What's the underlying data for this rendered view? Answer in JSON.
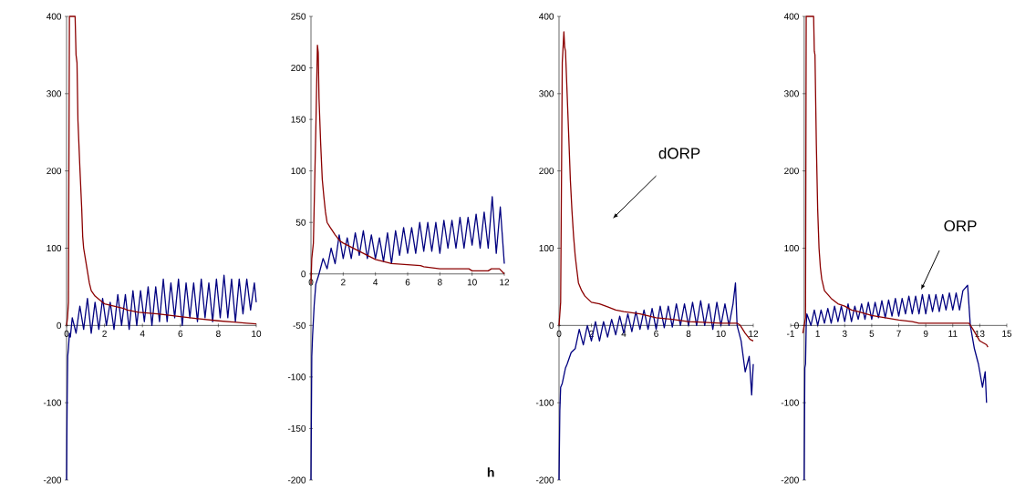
{
  "chart_data": [
    {
      "type": "line",
      "xlim": [
        0,
        10
      ],
      "ylim": [
        -200,
        400
      ],
      "xticks": [
        0,
        2,
        4,
        6,
        8,
        10
      ],
      "yticks": [
        -200,
        -100,
        0,
        100,
        200,
        300,
        400
      ],
      "series": [
        {
          "color": "#000080",
          "x": [
            0,
            0.03,
            0.06,
            0.1,
            0.15,
            0.2,
            0.3,
            0.5,
            0.7,
            0.9,
            1.1,
            1.3,
            1.5,
            1.7,
            1.9,
            2.1,
            2.3,
            2.5,
            2.7,
            2.9,
            3.1,
            3.3,
            3.5,
            3.7,
            3.9,
            4.1,
            4.3,
            4.5,
            4.7,
            4.9,
            5.1,
            5.3,
            5.5,
            5.7,
            5.9,
            6.1,
            6.3,
            6.5,
            6.7,
            6.9,
            7.1,
            7.3,
            7.5,
            7.7,
            7.9,
            8.1,
            8.3,
            8.5,
            8.7,
            8.9,
            9.1,
            9.3,
            9.5,
            9.7,
            9.9,
            10
          ],
          "values": [
            -200,
            -100,
            -40,
            -30,
            -10,
            -15,
            10,
            -10,
            25,
            -5,
            35,
            -10,
            30,
            -5,
            35,
            0,
            30,
            -5,
            40,
            0,
            40,
            -5,
            45,
            0,
            45,
            5,
            50,
            0,
            50,
            5,
            60,
            5,
            55,
            10,
            60,
            0,
            55,
            10,
            55,
            5,
            60,
            10,
            55,
            5,
            60,
            10,
            65,
            10,
            60,
            5,
            60,
            15,
            60,
            20,
            55,
            30
          ]
        },
        {
          "color": "#8b0000",
          "x": [
            0,
            0.05,
            0.1,
            0.15,
            0.45,
            0.5,
            0.55,
            0.6,
            0.7,
            0.8,
            0.85,
            0.9,
            1.0,
            1.1,
            1.2,
            1.3,
            1.5,
            1.8,
            2,
            2.5,
            3,
            3.2,
            3.8,
            4.8,
            5.8,
            6.8,
            8,
            9.5,
            10
          ],
          "values": [
            0,
            10,
            30,
            400,
            400,
            350,
            340,
            265,
            205,
            150,
            115,
            100,
            85,
            70,
            55,
            45,
            38,
            32,
            28,
            25,
            22,
            20,
            17,
            15,
            12,
            9,
            6,
            3,
            2
          ]
        }
      ]
    },
    {
      "type": "line",
      "xlabel": "h",
      "xlim": [
        0,
        12
      ],
      "ylim": [
        -200,
        250
      ],
      "xticks": [
        0,
        2,
        4,
        6,
        8,
        10,
        12
      ],
      "yticks": [
        -200,
        -150,
        -100,
        -50,
        0,
        50,
        100,
        150,
        200,
        250
      ],
      "series": [
        {
          "color": "#000080",
          "x": [
            0,
            0.05,
            0.1,
            0.2,
            0.3,
            0.4,
            0.5,
            0.75,
            1,
            1.25,
            1.5,
            1.75,
            2,
            2.25,
            2.5,
            2.75,
            3,
            3.25,
            3.5,
            3.75,
            4,
            4.25,
            4.5,
            4.75,
            5,
            5.25,
            5.5,
            5.75,
            6,
            6.25,
            6.5,
            6.75,
            7,
            7.25,
            7.5,
            7.75,
            8,
            8.25,
            8.5,
            8.75,
            9,
            9.25,
            9.5,
            9.75,
            10,
            10.25,
            10.5,
            10.75,
            11,
            11.25,
            11.5,
            11.75,
            12
          ],
          "values": [
            -200,
            -80,
            -60,
            -30,
            -10,
            -5,
            0,
            15,
            5,
            25,
            10,
            38,
            15,
            35,
            15,
            40,
            18,
            42,
            15,
            38,
            15,
            35,
            12,
            40,
            10,
            42,
            18,
            45,
            20,
            45,
            20,
            50,
            22,
            50,
            22,
            50,
            20,
            52,
            25,
            52,
            25,
            55,
            25,
            55,
            28,
            58,
            25,
            60,
            25,
            75,
            20,
            65,
            10
          ]
        },
        {
          "color": "#8b0000",
          "x": [
            0,
            0.05,
            0.15,
            0.3,
            0.4,
            0.45,
            0.5,
            0.6,
            0.7,
            0.8,
            0.9,
            1,
            1.2,
            1.5,
            1.8,
            2,
            2.5,
            3,
            3.5,
            4,
            4.5,
            5,
            6,
            6.8,
            7,
            8,
            9.8,
            10,
            11,
            11.2,
            11.7,
            12
          ],
          "values": [
            -10,
            15,
            30,
            140,
            222,
            215,
            170,
            127,
            92,
            75,
            60,
            50,
            45,
            38,
            32,
            30,
            26,
            22,
            18,
            14,
            12,
            10,
            9,
            8,
            7,
            5,
            5,
            3,
            3,
            5,
            5,
            0
          ]
        }
      ]
    },
    {
      "type": "line",
      "xlim": [
        0,
        12
      ],
      "ylim": [
        -200,
        400
      ],
      "xticks": [
        0,
        2,
        4,
        6,
        8,
        10,
        12
      ],
      "yticks": [
        -200,
        -100,
        0,
        100,
        200,
        300,
        400
      ],
      "annotations": [
        "dORP"
      ],
      "series": [
        {
          "color": "#000080",
          "x": [
            0,
            0.05,
            0.1,
            0.2,
            0.3,
            0.4,
            0.5,
            0.75,
            1,
            1.25,
            1.5,
            1.75,
            2,
            2.25,
            2.5,
            2.75,
            3,
            3.25,
            3.5,
            3.75,
            4,
            4.25,
            4.5,
            4.75,
            5,
            5.25,
            5.5,
            5.75,
            6,
            6.25,
            6.5,
            6.75,
            7,
            7.25,
            7.5,
            7.75,
            8,
            8.25,
            8.5,
            8.75,
            9,
            9.25,
            9.5,
            9.75,
            10,
            10.25,
            10.5,
            10.75,
            10.9,
            11,
            11.25,
            11.5,
            11.75,
            11.9,
            12
          ],
          "values": [
            -200,
            -110,
            -80,
            -75,
            -65,
            -55,
            -50,
            -35,
            -30,
            -5,
            -25,
            0,
            -20,
            5,
            -20,
            5,
            -15,
            8,
            -12,
            12,
            -10,
            15,
            -8,
            18,
            -5,
            20,
            -5,
            22,
            -5,
            25,
            -3,
            25,
            -2,
            28,
            0,
            28,
            0,
            30,
            0,
            32,
            0,
            28,
            -5,
            30,
            0,
            28,
            0,
            28,
            55,
            0,
            -20,
            -60,
            -40,
            -90,
            -50
          ]
        },
        {
          "color": "#8b0000",
          "x": [
            0,
            0.1,
            0.2,
            0.3,
            0.35,
            0.4,
            0.5,
            0.6,
            0.7,
            0.8,
            0.9,
            1,
            1.1,
            1.2,
            1.4,
            1.6,
            2,
            2.5,
            3,
            3.5,
            4,
            5,
            6,
            7,
            8,
            9,
            10,
            11,
            11.2,
            11.5,
            11.8,
            12
          ],
          "values": [
            0,
            30,
            340,
            380,
            360,
            355,
            300,
            245,
            188,
            148,
            115,
            90,
            72,
            55,
            45,
            38,
            30,
            28,
            24,
            20,
            18,
            15,
            10,
            8,
            5,
            4,
            3,
            3,
            0,
            -10,
            -18,
            -20
          ]
        }
      ]
    },
    {
      "type": "line",
      "xlim": [
        -1,
        15
      ],
      "ylim": [
        -200,
        400
      ],
      "xticks": [
        -1,
        1,
        3,
        5,
        7,
        9,
        11,
        13,
        15
      ],
      "yticks": [
        -200,
        -100,
        0,
        100,
        200,
        300,
        400
      ],
      "annotations": [
        "ORP"
      ],
      "series": [
        {
          "color": "#000080",
          "x": [
            0,
            0.05,
            0.1,
            0.15,
            0.2,
            0.5,
            0.75,
            1,
            1.25,
            1.5,
            1.75,
            2,
            2.25,
            2.5,
            2.75,
            3,
            3.25,
            3.5,
            3.75,
            4,
            4.25,
            4.5,
            4.75,
            5,
            5.25,
            5.5,
            5.75,
            6,
            6.25,
            6.5,
            6.75,
            7,
            7.25,
            7.5,
            7.75,
            8,
            8.25,
            8.5,
            8.75,
            9,
            9.25,
            9.5,
            9.75,
            10,
            10.25,
            10.5,
            10.75,
            11,
            11.25,
            11.5,
            11.75,
            12.1,
            12.3,
            12.6,
            12.9,
            13.2,
            13.4,
            13.5
          ],
          "values": [
            -200,
            -55,
            -50,
            0,
            15,
            0,
            20,
            0,
            20,
            3,
            22,
            3,
            25,
            5,
            25,
            5,
            28,
            5,
            25,
            8,
            28,
            8,
            30,
            8,
            30,
            10,
            32,
            10,
            33,
            12,
            35,
            12,
            35,
            15,
            38,
            15,
            38,
            15,
            40,
            15,
            40,
            18,
            40,
            18,
            40,
            20,
            42,
            20,
            42,
            20,
            45,
            52,
            0,
            -30,
            -50,
            -80,
            -60,
            -100
          ]
        },
        {
          "color": "#8b0000",
          "x": [
            -0.1,
            0,
            0.1,
            0.15,
            0.7,
            0.75,
            0.8,
            0.9,
            1,
            1.1,
            1.2,
            1.3,
            1.5,
            2,
            2.5,
            3,
            3.5,
            4,
            5,
            6,
            7,
            8,
            8.5,
            9,
            11,
            12.2,
            12.5,
            13,
            13.5,
            13.6
          ],
          "values": [
            -10,
            0,
            10,
            400,
            400,
            355,
            350,
            235,
            150,
            100,
            75,
            60,
            45,
            35,
            28,
            25,
            20,
            18,
            13,
            10,
            7,
            5,
            3,
            3,
            3,
            3,
            -5,
            -20,
            -25,
            -28
          ]
        }
      ]
    }
  ]
}
